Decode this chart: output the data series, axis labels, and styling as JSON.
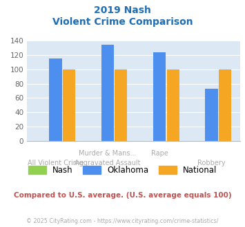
{
  "title_line1": "2019 Nash",
  "title_line2": "Violent Crime Comparison",
  "top_labels": [
    "",
    "Murder & Mans...",
    "Rape",
    ""
  ],
  "bottom_labels": [
    "All Violent Crime",
    "Aggravated Assault",
    "",
    "Robbery"
  ],
  "series": {
    "Nash": [
      0,
      0,
      0,
      0
    ],
    "Oklahoma": [
      115,
      135,
      124,
      73
    ],
    "National": [
      100,
      100,
      100,
      100
    ]
  },
  "colors": {
    "Nash": "#92d050",
    "Oklahoma": "#4c8fef",
    "National": "#f5a623"
  },
  "ylim": [
    0,
    140
  ],
  "yticks": [
    0,
    20,
    40,
    60,
    80,
    100,
    120,
    140
  ],
  "plot_bg_color": "#dce9f5",
  "fig_bg_color": "#ffffff",
  "title_color": "#1f6eb5",
  "label_color": "#aaaaaa",
  "grid_color": "#ffffff",
  "footer_text": "Compared to U.S. average. (U.S. average equals 100)",
  "footer_color": "#c0504d",
  "credit_text": "© 2025 CityRating.com - https://www.cityrating.com/crime-statistics/",
  "credit_color": "#aaaaaa",
  "bar_width": 0.26
}
